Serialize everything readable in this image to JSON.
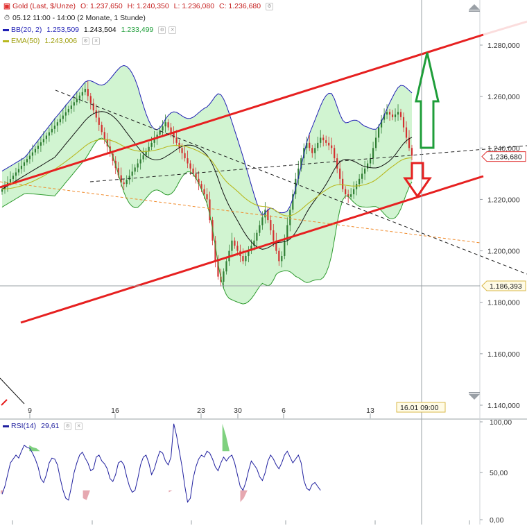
{
  "legend": {
    "instrument": {
      "name": "Gold (Last, $/Unze)",
      "o": "O: 1.237,650",
      "h": "H: 1.240,350",
      "l": "L: 1.236,080",
      "c": "C: 1.236,680"
    },
    "period": "05.12 11:00 - 14:00 (2 Monate, 1 Stunde)",
    "bb": {
      "name": "BB(20, 2)",
      "upper": "1.253,509",
      "mid": "1.243,504",
      "lower": "1.233,499"
    },
    "ema": {
      "name": "EMA(50)",
      "value": "1.243,006"
    },
    "rsi": {
      "name": "RSI(14)",
      "value": "29,61"
    }
  },
  "crosshair": {
    "date_label": "16.01 09:00",
    "price_label": "1.186,393"
  },
  "colors": {
    "candle_up": "#2e7d32",
    "candle_down": "#d32f2f",
    "bb_band": "#1f1fb4",
    "bb_mid": "#111111",
    "bb_fill": "#ccf3cc",
    "ema": "#b8b81f",
    "trend_red": "#e62020",
    "rsi_line": "#20209f",
    "rsi_overbought": "#7fd17f",
    "rsi_oversold": "#e6a8b0",
    "arrow_up": "#1f9e3a",
    "arrow_down": "#e62020",
    "last_price": "#e03030"
  },
  "chart_data": [
    {
      "type": "candlestick",
      "title": "Gold (Last, $/Unze)",
      "x_tick_labels": [
        "9",
        "16",
        "23",
        "30",
        "6",
        "13"
      ],
      "y_tick_labels": [
        "1.140,000",
        "1.160,000",
        "1.180,000",
        "1.200,000",
        "1.220,000",
        "1.240,000",
        "1.260,000",
        "1.280,000"
      ],
      "ylim": [
        1134,
        1290
      ],
      "last_price": 1236.68,
      "last_price_label": "1.236,680",
      "crosshair_price": 1186.393,
      "closes": [
        1224.0,
        1225.3,
        1226.6,
        1227.9,
        1229.2,
        1230.5,
        1231.8,
        1233.1,
        1234.4,
        1235.7,
        1237.0,
        1238.3,
        1239.6,
        1240.9,
        1242.2,
        1243.5,
        1244.8,
        1246.1,
        1247.4,
        1248.7,
        1250.0,
        1251.3,
        1252.6,
        1253.9,
        1255.2,
        1256.5,
        1257.8,
        1259.1,
        1260.4,
        1261.7,
        1263.0,
        1260.2,
        1257.4,
        1254.6,
        1251.8,
        1249.0,
        1246.2,
        1243.4,
        1240.6,
        1237.8,
        1235.0,
        1232.2,
        1229.4,
        1226.6,
        1226.0,
        1227.6,
        1229.2,
        1230.8,
        1232.4,
        1234.0,
        1235.6,
        1237.2,
        1238.8,
        1240.4,
        1242.0,
        1243.6,
        1245.2,
        1246.8,
        1248.4,
        1250.0,
        1248.0,
        1246.0,
        1244.0,
        1242.0,
        1240.0,
        1238.0,
        1236.0,
        1234.0,
        1232.0,
        1230.0,
        1228.0,
        1226.0,
        1224.0,
        1222.0,
        1220.0,
        1212.0,
        1204.0,
        1196.0,
        1190.0,
        1188.0,
        1192.0,
        1196.0,
        1200.0,
        1204.0,
        1202.0,
        1200.0,
        1198.0,
        1196.0,
        1198.0,
        1200.0,
        1202.0,
        1204.0,
        1207.0,
        1210.0,
        1213.0,
        1216.0,
        1212.0,
        1208.0,
        1204.0,
        1200.0,
        1196.0,
        1198.0,
        1204.0,
        1210.0,
        1216.0,
        1222.0,
        1228.0,
        1232.0,
        1236.0,
        1240.0,
        1242.0,
        1240.0,
        1238.0,
        1240.0,
        1242.0,
        1244.0,
        1243.0,
        1242.0,
        1241.0,
        1240.0,
        1236.0,
        1232.0,
        1228.0,
        1224.0,
        1222.0,
        1221.0,
        1222.0,
        1224.0,
        1226.0,
        1228.0,
        1230.0,
        1232.0,
        1234.0,
        1236.0,
        1240.0,
        1244.0,
        1248.0,
        1251.0,
        1253.0,
        1254.0,
        1253.0,
        1252.0,
        1253.0,
        1254.0,
        1252.0,
        1248.0,
        1244.0,
        1240.0,
        1237.0
      ],
      "annotations": [
        "16.01 09:00",
        "1.186,393",
        "1.236,680"
      ]
    },
    {
      "type": "line",
      "title": "RSI(14)",
      "y_tick_labels": [
        "0,00",
        "50,00",
        "100,00"
      ],
      "ylim": [
        0,
        100
      ],
      "series": [
        {
          "name": "RSI(14)",
          "values": [
            26,
            34,
            46,
            58,
            62,
            66,
            63,
            70,
            76,
            74,
            73,
            68,
            62,
            54,
            42,
            38,
            46,
            58,
            63,
            62,
            56,
            42,
            30,
            22,
            20,
            33,
            48,
            58,
            66,
            69,
            63,
            58,
            50,
            52,
            64,
            66,
            60,
            57,
            52,
            42,
            39,
            46,
            58,
            60,
            56,
            44,
            34,
            28,
            30,
            42,
            56,
            64,
            66,
            58,
            46,
            52,
            62,
            70,
            68,
            60,
            56,
            64,
            98,
            86,
            70,
            54,
            34,
            18,
            22,
            42,
            54,
            62,
            66,
            64,
            70,
            68,
            62,
            54,
            50,
            58,
            64,
            60,
            64,
            66,
            58,
            46,
            34,
            30,
            38,
            50,
            60,
            56,
            52,
            44,
            40,
            48,
            60,
            66,
            62,
            56,
            52,
            58,
            66,
            70,
            64,
            58,
            62,
            66,
            58,
            40,
            32,
            30,
            36,
            38,
            34,
            30
          ]
        }
      ],
      "overbought": 70,
      "oversold": 30
    }
  ]
}
